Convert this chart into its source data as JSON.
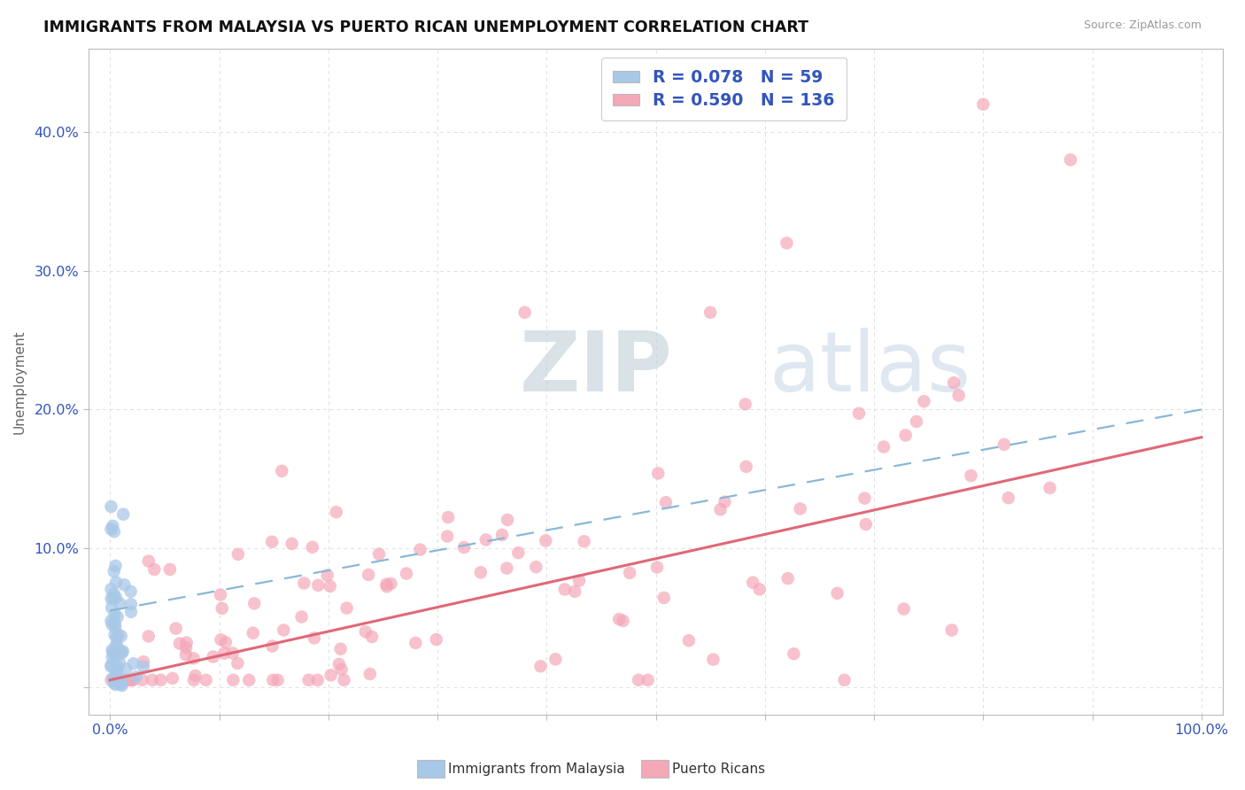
{
  "title": "IMMIGRANTS FROM MALAYSIA VS PUERTO RICAN UNEMPLOYMENT CORRELATION CHART",
  "source": "Source: ZipAtlas.com",
  "ylabel": "Unemployment",
  "xlim": [
    -0.02,
    1.02
  ],
  "ylim": [
    -0.02,
    0.46
  ],
  "malaysia_R": 0.078,
  "malaysia_N": 59,
  "puertorico_R": 0.59,
  "puertorico_N": 136,
  "malaysia_color": "#a8c8e8",
  "puertorico_color": "#f4a8b8",
  "malaysia_line_color": "#88b8d8",
  "puertorico_line_color": "#e06878",
  "legend_text_color": "#3355bb",
  "watermark_color": "#c8ddf0",
  "background_color": "#ffffff",
  "grid_color": "#e0e0e0",
  "title_color": "#111111",
  "axis_color": "#666666",
  "tick_color": "#3355bb",
  "pr_line_intercept": 0.005,
  "pr_line_slope": 0.175,
  "mal_line_intercept": 0.055,
  "mal_line_slope": 0.145
}
